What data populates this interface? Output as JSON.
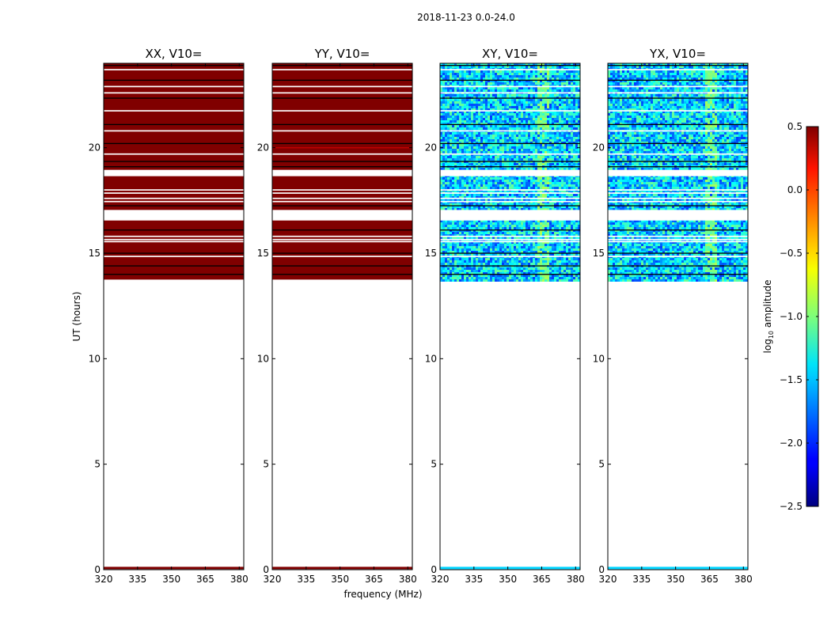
{
  "chart_data": {
    "type": "heatmap",
    "title": "2018-11-23 0.0-24.0",
    "xlabel": "frequency (MHz)",
    "ylabel": "UT (hours)",
    "xlim": [
      320,
      382
    ],
    "ylim": [
      0,
      24
    ],
    "xticks": [
      320,
      335,
      350,
      365,
      380
    ],
    "yticks": [
      0,
      5,
      10,
      15,
      20
    ],
    "data_time_range": [
      13.75,
      24.0
    ],
    "gaps_hours": [
      [
        18.65,
        18.95
      ],
      [
        16.55,
        17.05
      ]
    ],
    "thin_gaps_hours": [
      23.7,
      22.9,
      22.6,
      21.75,
      20.8,
      19.7,
      18.0,
      17.85,
      17.6,
      17.45,
      15.8,
      15.65,
      15.55,
      14.85
    ],
    "dark_rows_hours": [
      23.9,
      23.2,
      22.35,
      21.1,
      20.2,
      19.35,
      19.1,
      17.25,
      16.1,
      15.0,
      14.4,
      14.0
    ],
    "bottom_strip_hours": [
      0.0,
      0.08
    ],
    "bright_channels_mhz": [
      [
        363.5,
        368.5
      ]
    ],
    "panels": [
      {
        "name": "XX",
        "title": "XX, V10=",
        "log10_amplitude_typical": 0.5,
        "appearance": "saturated dark red"
      },
      {
        "name": "YY",
        "title": "YY, V10=",
        "log10_amplitude_typical": 0.5,
        "appearance": "saturated dark red",
        "red_line_hours": 20.0
      },
      {
        "name": "XY",
        "title": "XY, V10=",
        "log10_amplitude_typical": -1.5,
        "appearance": "noisy blue-cyan"
      },
      {
        "name": "YX",
        "title": "YX, V10=",
        "log10_amplitude_typical": -1.5,
        "appearance": "noisy blue-cyan"
      }
    ],
    "colorbar": {
      "label": "log",
      "label_sub": "10",
      "label_rest": " amplitude",
      "vmin": -2.5,
      "vmax": 0.5,
      "ticks": [
        0.5,
        0.0,
        -0.5,
        -1.0,
        -1.5,
        -2.0,
        -2.5
      ],
      "tick_labels": [
        "0.5",
        "0.0",
        "−0.5",
        "−1.0",
        "−1.5",
        "−2.0",
        "−2.5"
      ],
      "colormap": "jet"
    },
    "colors": {
      "saturated": "#800000",
      "data_line": "#cc0000",
      "gap": "#ffffff",
      "dark_row": "#000000"
    }
  }
}
